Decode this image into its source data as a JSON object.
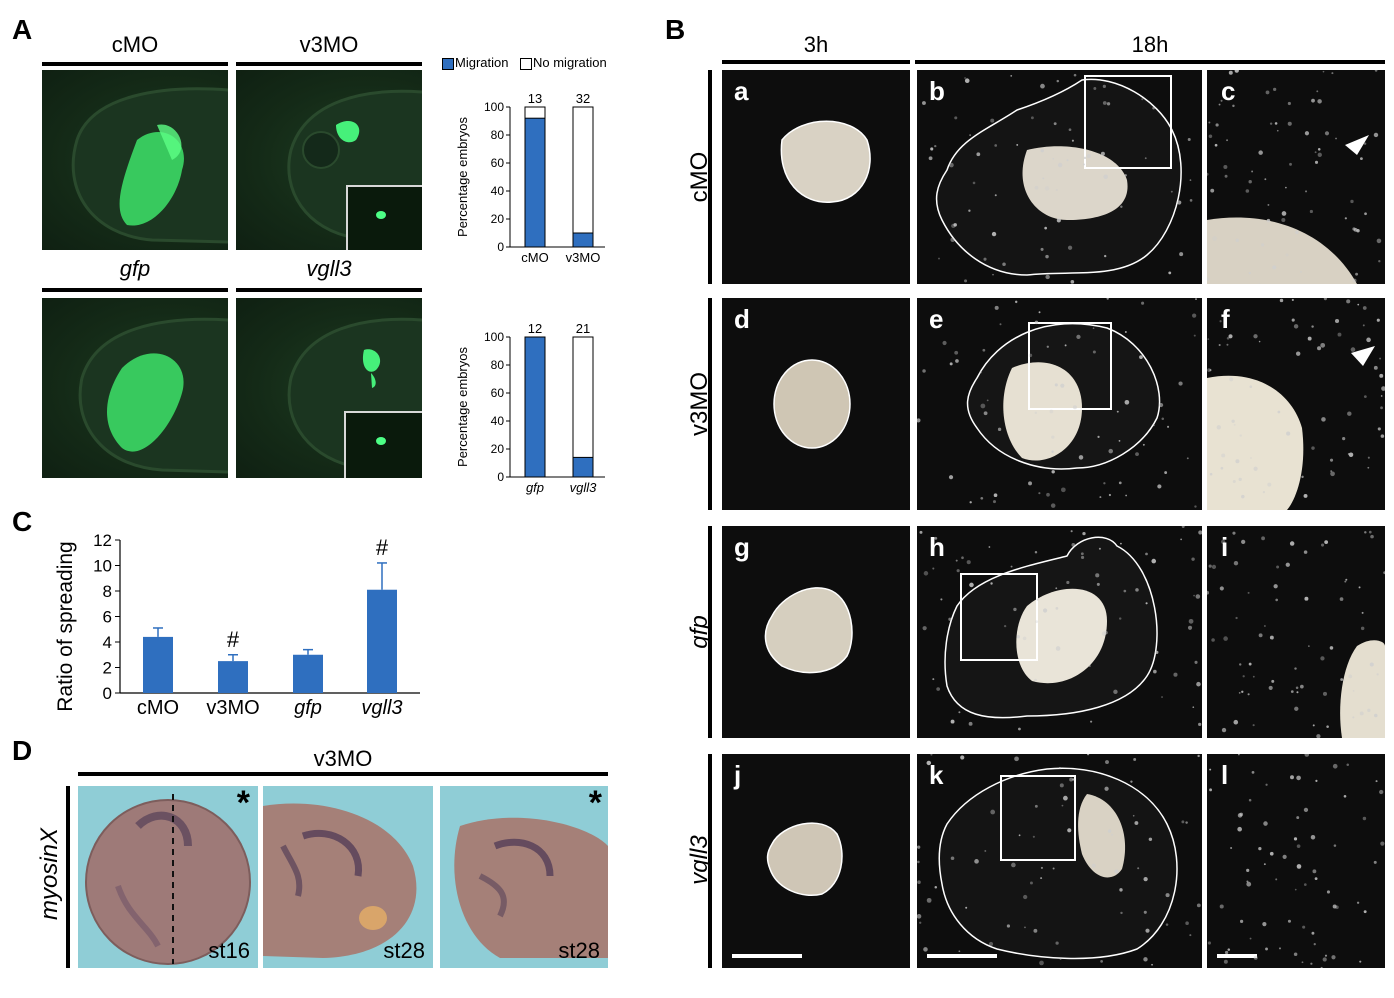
{
  "panels": {
    "A": "A",
    "B": "B",
    "C": "C",
    "D": "D"
  },
  "panelA": {
    "top_labels": [
      "cMO",
      "v3MO"
    ],
    "bottom_labels": [
      "gfp",
      "vgll3"
    ],
    "legend": {
      "migration": "Migration",
      "no_migration": "No migration",
      "migration_color": "#2f6fbf"
    },
    "chart_top": {
      "type": "bar",
      "ylabel": "Percentage embryos",
      "yticks": [
        "0",
        "20",
        "40",
        "60",
        "80",
        "100"
      ],
      "ylim": [
        0,
        100
      ],
      "categories": [
        "cMO",
        "v3MO"
      ],
      "counts": [
        "13",
        "32"
      ],
      "migration": [
        92,
        10
      ]
    },
    "chart_bottom": {
      "type": "bar",
      "ylabel": "Percentage embryos",
      "yticks": [
        "0",
        "20",
        "40",
        "60",
        "80",
        "100"
      ],
      "ylim": [
        0,
        100
      ],
      "categories": [
        "gfp",
        "vgll3"
      ],
      "counts": [
        "12",
        "21"
      ],
      "migration": [
        100,
        14
      ]
    }
  },
  "chart_data": {
    "type": "bar",
    "ylabel": "Ratio of spreading",
    "yticks": [
      "0",
      "2",
      "4",
      "6",
      "8",
      "10",
      "12"
    ],
    "ylim": [
      0,
      12
    ],
    "categories": [
      "cMO",
      "v3MO",
      "gfp",
      "vgll3"
    ],
    "values": [
      4.4,
      2.5,
      3.0,
      8.1
    ],
    "errors": [
      0.7,
      0.5,
      0.4,
      2.1
    ],
    "marks": [
      "",
      "#",
      "",
      "#"
    ],
    "color": "#2f6fbf"
  },
  "panelB": {
    "time_labels": [
      "3h",
      "18h"
    ],
    "rows": [
      "cMO",
      "v3MO",
      "gfp",
      "vgll3"
    ],
    "sub_letters": [
      [
        "a",
        "b",
        "c"
      ],
      [
        "d",
        "e",
        "f"
      ],
      [
        "g",
        "h",
        "i"
      ],
      [
        "j",
        "k",
        "l"
      ]
    ]
  },
  "panelD": {
    "header": "v3MO",
    "side_label": "myosinX",
    "stages": [
      "st16",
      "st28",
      "st28"
    ],
    "asterisk": "*"
  }
}
